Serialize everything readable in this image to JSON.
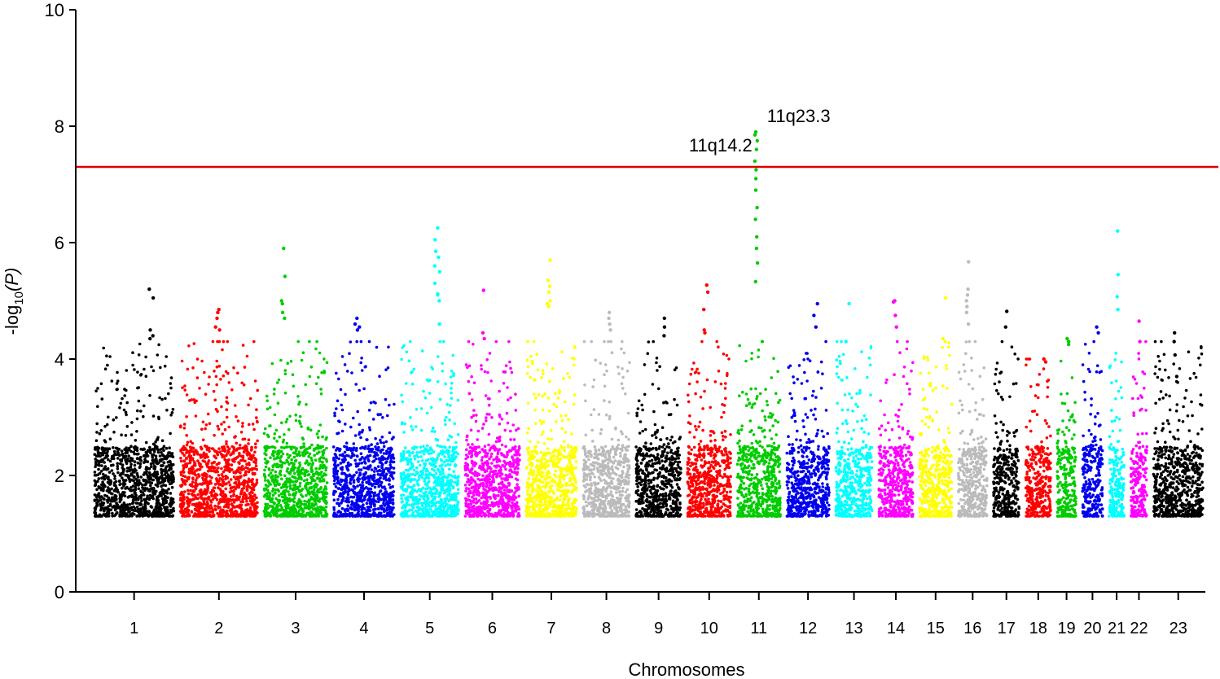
{
  "chart_data": {
    "type": "scatter",
    "subtype": "manhattan",
    "title": "",
    "xlabel": "Chromosomes",
    "ylabel_prefix": "-log",
    "ylabel_sub": "10",
    "ylabel_suffix": "(P)",
    "ylim": [
      0,
      10
    ],
    "yticks": [
      0,
      2,
      4,
      6,
      8,
      10
    ],
    "baseline_min": 1.3,
    "significance_line": {
      "value": 7.3,
      "color": "#dd0000"
    },
    "chromosomes": [
      {
        "label": "1",
        "size": 249,
        "color": "#000000",
        "max": 5.2,
        "top": [
          5.2,
          5.05,
          4.5,
          4.4,
          4.35
        ]
      },
      {
        "label": "2",
        "size": 243,
        "color": "#ff0000",
        "max": 4.85,
        "top": [
          4.85,
          4.8,
          4.7,
          4.55,
          4.5
        ]
      },
      {
        "label": "3",
        "size": 198,
        "color": "#00cc00",
        "max": 5.9,
        "top": [
          5.9,
          5.42,
          5.0,
          4.95,
          4.8,
          4.7
        ]
      },
      {
        "label": "4",
        "size": 191,
        "color": "#0000ee",
        "max": 4.7,
        "top": [
          4.7,
          4.6,
          4.55,
          4.5
        ]
      },
      {
        "label": "5",
        "size": 181,
        "color": "#00ffff",
        "max": 6.25,
        "top": [
          6.25,
          6.05,
          5.85,
          5.75,
          5.6,
          5.5,
          5.3,
          5.1,
          5.0,
          4.6,
          5.12
        ]
      },
      {
        "label": "6",
        "size": 171,
        "color": "#ff00ff",
        "max": 5.2,
        "top": [
          5.18,
          4.45,
          4.35
        ]
      },
      {
        "label": "7",
        "size": 159,
        "color": "#ffff00",
        "max": 5.7,
        "top": [
          5.7,
          5.35,
          5.25,
          5.15,
          5.0,
          4.95,
          4.9
        ]
      },
      {
        "label": "8",
        "size": 146,
        "color": "#bbbbbb",
        "max": 4.8,
        "top": [
          4.8,
          4.7,
          4.6,
          4.5
        ]
      },
      {
        "label": "9",
        "size": 141,
        "color": "#000000",
        "max": 4.7,
        "top": [
          4.7,
          4.55,
          4.4
        ]
      },
      {
        "label": "10",
        "size": 136,
        "color": "#ff0000",
        "max": 5.27,
        "top": [
          5.27,
          5.15,
          4.85,
          4.5,
          4.45
        ]
      },
      {
        "label": "11",
        "size": 135,
        "color": "#00cc00",
        "max": 7.9,
        "top": [
          7.9,
          7.85,
          7.75,
          7.6,
          7.4,
          7.25,
          7.1,
          6.9,
          6.6,
          6.4,
          6.1,
          5.9,
          5.65,
          5.33
        ]
      },
      {
        "label": "12",
        "size": 133,
        "color": "#0000ee",
        "max": 4.95,
        "top": [
          4.95,
          4.75,
          4.55
        ]
      },
      {
        "label": "13",
        "size": 115,
        "color": "#00ffff",
        "max": 4.95,
        "top": [
          4.95,
          4.3
        ]
      },
      {
        "label": "14",
        "size": 107,
        "color": "#ff00ff",
        "max": 5.0,
        "top": [
          5.0,
          4.98,
          4.75,
          4.55
        ]
      },
      {
        "label": "15",
        "size": 102,
        "color": "#ffff00",
        "max": 5.05,
        "top": [
          5.05,
          4.35
        ]
      },
      {
        "label": "16",
        "size": 90,
        "color": "#bbbbbb",
        "max": 5.67,
        "top": [
          5.67,
          5.2,
          5.1,
          5.0,
          4.9,
          4.8,
          4.6
        ]
      },
      {
        "label": "17",
        "size": 81,
        "color": "#000000",
        "max": 4.82,
        "top": [
          4.82,
          4.55
        ]
      },
      {
        "label": "18",
        "size": 78,
        "color": "#ff0000",
        "max": 4.0,
        "top": [
          4.0,
          3.95
        ]
      },
      {
        "label": "19",
        "size": 59,
        "color": "#00cc00",
        "max": 4.35,
        "top": [
          4.35,
          4.3,
          4.25
        ]
      },
      {
        "label": "20",
        "size": 63,
        "color": "#0000ee",
        "max": 4.55,
        "top": [
          4.55,
          4.45
        ]
      },
      {
        "label": "21",
        "size": 48,
        "color": "#00ffff",
        "max": 6.2,
        "top": [
          6.2,
          5.45,
          5.07,
          4.85
        ]
      },
      {
        "label": "22",
        "size": 51,
        "color": "#ff00ff",
        "max": 4.65,
        "top": [
          4.65,
          4.3
        ]
      },
      {
        "label": "23",
        "size": 155,
        "color": "#000000",
        "max": 4.45,
        "top": [
          4.45,
          4.3,
          4.07,
          3.7
        ]
      }
    ],
    "annotations": [
      {
        "text": "11q14.2",
        "chromosome": "11",
        "value": 7.4
      },
      {
        "text": "11q23.3",
        "chromosome": "11",
        "value": 7.9
      }
    ]
  }
}
